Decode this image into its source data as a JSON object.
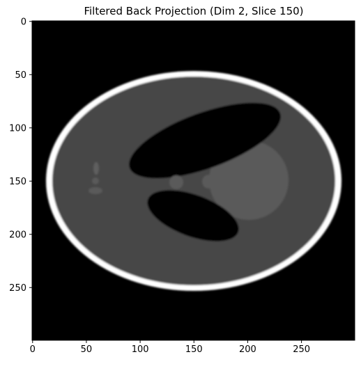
{
  "figure": {
    "title": "Filtered Back Projection (Dim 2, Slice 150)"
  },
  "image_axes": {
    "x_ticks": [
      "0",
      "50",
      "100",
      "150",
      "200",
      "250"
    ],
    "y_ticks": [
      "0",
      "50",
      "100",
      "150",
      "200",
      "250"
    ],
    "x_range": [
      0,
      299
    ],
    "y_range": [
      0,
      299
    ],
    "colormap": "gray",
    "origin": "upper"
  },
  "phantom": {
    "description_colors": {
      "background": "#000000",
      "skull": "#ffffff",
      "brain": "#464646",
      "ventricle": "#050505",
      "bright_blob": "#5a5a5a",
      "small_feature": "#5f5f5f"
    }
  }
}
